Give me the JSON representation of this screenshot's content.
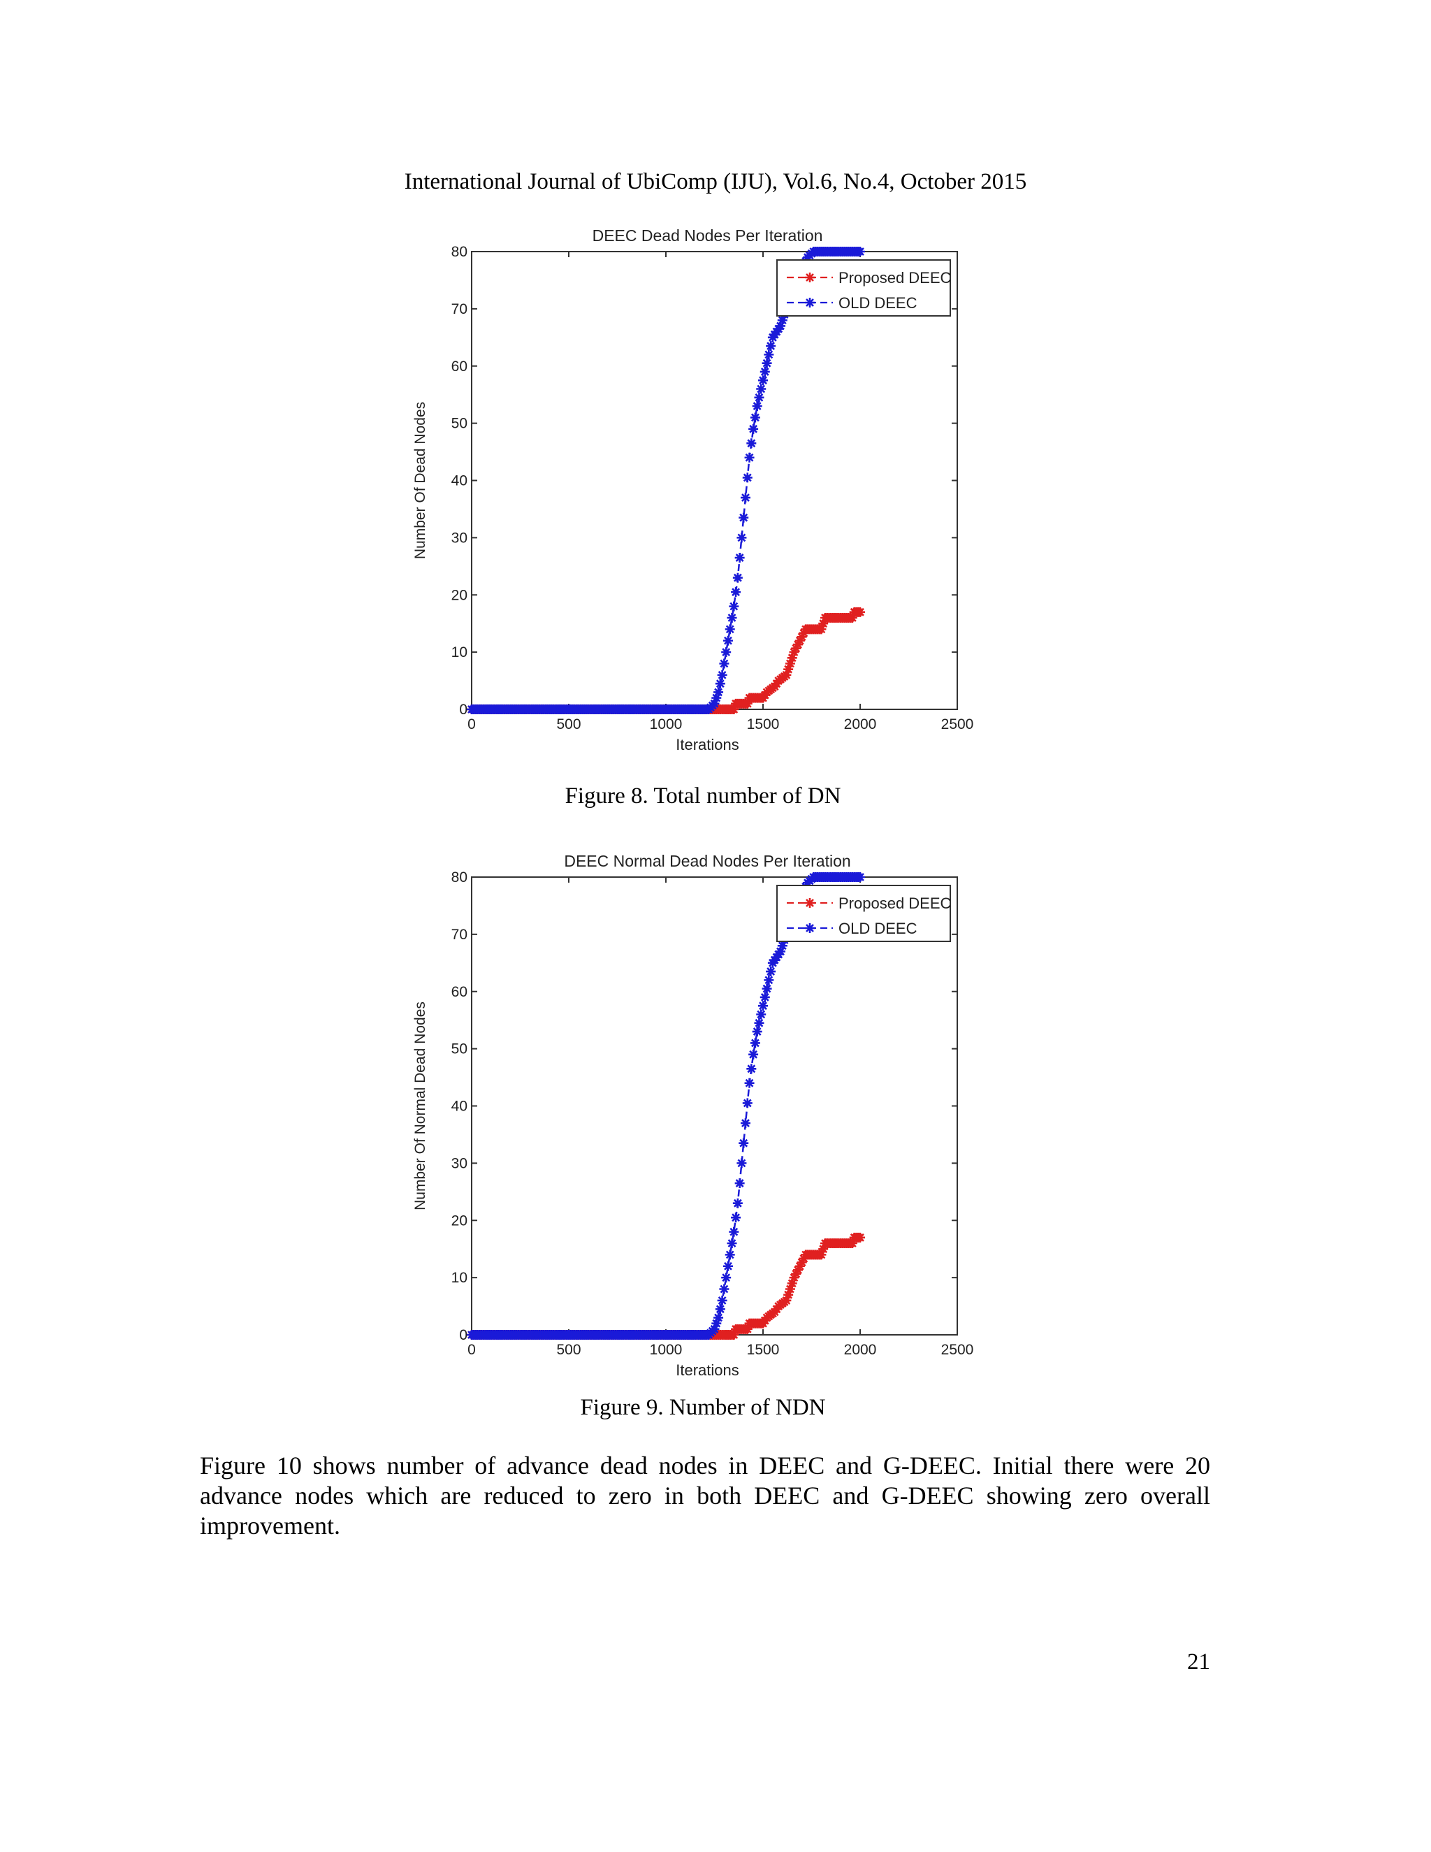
{
  "header": "International Journal of UbiComp (IJU), Vol.6, No.4, October 2015",
  "figures": [
    {
      "caption": "Figure 8. Total number of DN"
    },
    {
      "caption": "Figure 9. Number of NDN"
    }
  ],
  "paragraph": "Figure 10 shows number of advance dead nodes in DEEC and G-DEEC. Initial there were 20 advance nodes which are reduced to zero in both DEEC and G-DEEC showing zero overall improvement.",
  "page_number": "21",
  "chart_data": [
    {
      "type": "line",
      "title": "DEEC Dead Nodes Per Iteration",
      "xlabel": "Iterations",
      "ylabel": "Number Of Dead Nodes",
      "xlim": [
        0,
        2500
      ],
      "ylim": [
        0,
        80
      ],
      "xticks": [
        0,
        500,
        1000,
        1500,
        2000,
        2500
      ],
      "yticks": [
        0,
        10,
        20,
        30,
        40,
        50,
        60,
        70,
        80
      ],
      "grid": false,
      "legend_position": "top-right",
      "series": [
        {
          "name": "Proposed DEEC",
          "color": "#e02020",
          "marker": "star",
          "x": [
            0,
            1250,
            1270,
            1350,
            1360,
            1420,
            1430,
            1500,
            1520,
            1560,
            1580,
            1620,
            1640,
            1660,
            1690,
            1720,
            1740,
            1800,
            1820,
            1880,
            1890,
            1960,
            1970,
            2000
          ],
          "y": [
            0,
            0,
            0,
            0,
            1,
            1,
            2,
            2,
            3,
            4,
            5,
            6,
            8,
            10,
            12,
            14,
            14,
            14,
            16,
            16,
            16,
            16,
            17,
            17
          ]
        },
        {
          "name": "OLD DEEC",
          "color": "#1a1ad8",
          "marker": "star",
          "x": [
            0,
            1220,
            1250,
            1270,
            1290,
            1310,
            1330,
            1350,
            1370,
            1390,
            1410,
            1430,
            1450,
            1470,
            1490,
            1510,
            1530,
            1550,
            1570,
            1590,
            1610,
            1640,
            1670,
            1700,
            1730,
            1760,
            1800,
            1850,
            1900,
            2000
          ],
          "y": [
            0,
            0,
            1,
            3,
            6,
            10,
            14,
            18,
            23,
            30,
            37,
            44,
            49,
            53,
            56,
            59,
            62,
            65,
            66,
            67,
            69,
            72,
            75,
            77,
            79,
            80,
            80,
            80,
            80,
            80
          ]
        }
      ]
    },
    {
      "type": "line",
      "title": "DEEC Normal Dead Nodes Per Iteration",
      "xlabel": "Iterations",
      "ylabel": "Number Of Normal Dead Nodes",
      "xlim": [
        0,
        2500
      ],
      "ylim": [
        0,
        80
      ],
      "xticks": [
        0,
        500,
        1000,
        1500,
        2000,
        2500
      ],
      "yticks": [
        0,
        10,
        20,
        30,
        40,
        50,
        60,
        70,
        80
      ],
      "grid": false,
      "legend_position": "top-right",
      "series": [
        {
          "name": "Proposed DEEC",
          "color": "#e02020",
          "marker": "star",
          "x": [
            0,
            1250,
            1270,
            1350,
            1360,
            1420,
            1430,
            1500,
            1520,
            1560,
            1580,
            1620,
            1640,
            1660,
            1690,
            1720,
            1740,
            1800,
            1820,
            1880,
            1890,
            1960,
            1970,
            2000
          ],
          "y": [
            0,
            0,
            0,
            0,
            1,
            1,
            2,
            2,
            3,
            4,
            5,
            6,
            8,
            10,
            12,
            14,
            14,
            14,
            16,
            16,
            16,
            16,
            17,
            17
          ]
        },
        {
          "name": "OLD DEEC",
          "color": "#1a1ad8",
          "marker": "star",
          "x": [
            0,
            1220,
            1250,
            1270,
            1290,
            1310,
            1330,
            1350,
            1370,
            1390,
            1410,
            1430,
            1450,
            1470,
            1490,
            1510,
            1530,
            1550,
            1570,
            1590,
            1610,
            1640,
            1670,
            1700,
            1730,
            1760,
            1800,
            1850,
            1900,
            2000
          ],
          "y": [
            0,
            0,
            1,
            3,
            6,
            10,
            14,
            18,
            23,
            30,
            37,
            44,
            49,
            53,
            56,
            59,
            62,
            65,
            66,
            67,
            69,
            72,
            75,
            77,
            79,
            80,
            80,
            80,
            80,
            80
          ]
        }
      ]
    }
  ]
}
